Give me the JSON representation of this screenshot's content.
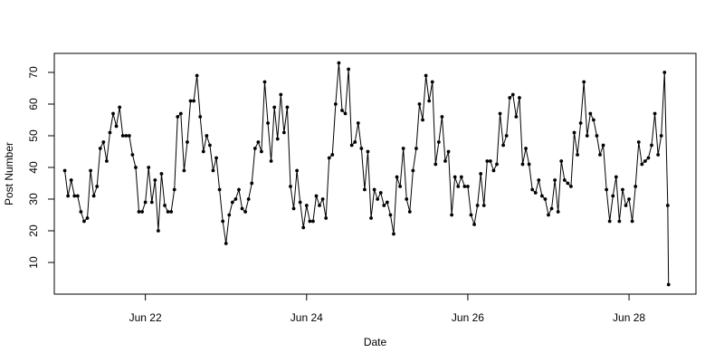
{
  "chart_data": {
    "type": "line",
    "title": "",
    "xlabel": "Date",
    "ylabel": "Post Number",
    "xlim": [
      -0.13,
      7.83
    ],
    "ylim": [
      0,
      76
    ],
    "x_ticks": [
      {
        "value": 1,
        "label": "Jun 22"
      },
      {
        "value": 3,
        "label": "Jun 24"
      },
      {
        "value": 5,
        "label": "Jun 26"
      },
      {
        "value": 7,
        "label": "Jun 28"
      }
    ],
    "y_ticks": [
      10,
      20,
      30,
      40,
      50,
      60,
      70
    ],
    "grid": false,
    "legend": "none",
    "x_unit_note": "x values are days after Jun 21 00:00",
    "series": [
      {
        "name": "",
        "color": "#000000",
        "marker": "filled-circle",
        "points": [
          [
            0.0,
            39
          ],
          [
            0.04,
            31
          ],
          [
            0.08,
            36
          ],
          [
            0.12,
            31
          ],
          [
            0.16,
            31
          ],
          [
            0.2,
            26
          ],
          [
            0.24,
            23
          ],
          [
            0.28,
            24
          ],
          [
            0.32,
            39
          ],
          [
            0.36,
            31
          ],
          [
            0.4,
            34
          ],
          [
            0.44,
            46
          ],
          [
            0.48,
            48
          ],
          [
            0.52,
            42
          ],
          [
            0.56,
            51
          ],
          [
            0.6,
            57
          ],
          [
            0.64,
            53
          ],
          [
            0.68,
            59
          ],
          [
            0.72,
            50
          ],
          [
            0.76,
            50
          ],
          [
            0.8,
            50
          ],
          [
            0.84,
            44
          ],
          [
            0.88,
            40
          ],
          [
            0.92,
            26
          ],
          [
            0.96,
            26
          ],
          [
            1.0,
            29
          ],
          [
            1.04,
            40
          ],
          [
            1.08,
            29
          ],
          [
            1.12,
            36
          ],
          [
            1.16,
            20
          ],
          [
            1.2,
            38
          ],
          [
            1.24,
            28
          ],
          [
            1.28,
            26
          ],
          [
            1.32,
            26
          ],
          [
            1.36,
            33
          ],
          [
            1.4,
            56
          ],
          [
            1.44,
            57
          ],
          [
            1.48,
            39
          ],
          [
            1.52,
            48
          ],
          [
            1.56,
            61
          ],
          [
            1.6,
            61
          ],
          [
            1.64,
            69
          ],
          [
            1.68,
            56
          ],
          [
            1.72,
            45
          ],
          [
            1.76,
            50
          ],
          [
            1.8,
            47
          ],
          [
            1.84,
            39
          ],
          [
            1.88,
            43
          ],
          [
            1.92,
            33
          ],
          [
            1.96,
            23
          ],
          [
            2.0,
            16
          ],
          [
            2.04,
            25
          ],
          [
            2.08,
            29
          ],
          [
            2.12,
            30
          ],
          [
            2.16,
            33
          ],
          [
            2.2,
            27
          ],
          [
            2.24,
            26
          ],
          [
            2.28,
            30
          ],
          [
            2.32,
            35
          ],
          [
            2.36,
            46
          ],
          [
            2.4,
            48
          ],
          [
            2.44,
            45
          ],
          [
            2.48,
            67
          ],
          [
            2.52,
            54
          ],
          [
            2.56,
            42
          ],
          [
            2.6,
            59
          ],
          [
            2.64,
            49
          ],
          [
            2.68,
            63
          ],
          [
            2.72,
            51
          ],
          [
            2.76,
            59
          ],
          [
            2.8,
            34
          ],
          [
            2.84,
            27
          ],
          [
            2.88,
            39
          ],
          [
            2.92,
            29
          ],
          [
            2.96,
            21
          ],
          [
            3.0,
            28
          ],
          [
            3.04,
            23
          ],
          [
            3.08,
            23
          ],
          [
            3.12,
            31
          ],
          [
            3.16,
            28
          ],
          [
            3.2,
            30
          ],
          [
            3.24,
            24
          ],
          [
            3.28,
            43
          ],
          [
            3.32,
            44
          ],
          [
            3.36,
            60
          ],
          [
            3.4,
            73
          ],
          [
            3.44,
            58
          ],
          [
            3.48,
            57
          ],
          [
            3.52,
            71
          ],
          [
            3.56,
            47
          ],
          [
            3.6,
            48
          ],
          [
            3.64,
            54
          ],
          [
            3.68,
            46
          ],
          [
            3.72,
            33
          ],
          [
            3.76,
            45
          ],
          [
            3.8,
            24
          ],
          [
            3.84,
            33
          ],
          [
            3.88,
            30
          ],
          [
            3.92,
            32
          ],
          [
            3.96,
            28
          ],
          [
            4.0,
            29
          ],
          [
            4.04,
            25
          ],
          [
            4.08,
            19
          ],
          [
            4.12,
            37
          ],
          [
            4.16,
            34
          ],
          [
            4.2,
            46
          ],
          [
            4.24,
            30
          ],
          [
            4.28,
            26
          ],
          [
            4.32,
            39
          ],
          [
            4.36,
            46
          ],
          [
            4.4,
            60
          ],
          [
            4.44,
            55
          ],
          [
            4.48,
            69
          ],
          [
            4.52,
            61
          ],
          [
            4.56,
            67
          ],
          [
            4.6,
            41
          ],
          [
            4.64,
            48
          ],
          [
            4.68,
            56
          ],
          [
            4.72,
            42
          ],
          [
            4.76,
            45
          ],
          [
            4.8,
            25
          ],
          [
            4.84,
            37
          ],
          [
            4.88,
            34
          ],
          [
            4.92,
            37
          ],
          [
            4.96,
            34
          ],
          [
            5.0,
            34
          ],
          [
            5.04,
            25
          ],
          [
            5.08,
            22
          ],
          [
            5.12,
            28
          ],
          [
            5.16,
            38
          ],
          [
            5.2,
            28
          ],
          [
            5.24,
            42
          ],
          [
            5.28,
            42
          ],
          [
            5.32,
            39
          ],
          [
            5.36,
            41
          ],
          [
            5.4,
            57
          ],
          [
            5.44,
            47
          ],
          [
            5.48,
            50
          ],
          [
            5.52,
            62
          ],
          [
            5.56,
            63
          ],
          [
            5.6,
            56
          ],
          [
            5.64,
            62
          ],
          [
            5.68,
            41
          ],
          [
            5.72,
            46
          ],
          [
            5.76,
            41
          ],
          [
            5.8,
            33
          ],
          [
            5.84,
            32
          ],
          [
            5.88,
            36
          ],
          [
            5.92,
            31
          ],
          [
            5.96,
            30
          ],
          [
            6.0,
            25
          ],
          [
            6.04,
            27
          ],
          [
            6.08,
            36
          ],
          [
            6.12,
            26
          ],
          [
            6.16,
            42
          ],
          [
            6.2,
            36
          ],
          [
            6.24,
            35
          ],
          [
            6.28,
            34
          ],
          [
            6.32,
            51
          ],
          [
            6.36,
            44
          ],
          [
            6.4,
            54
          ],
          [
            6.44,
            67
          ],
          [
            6.48,
            50
          ],
          [
            6.52,
            57
          ],
          [
            6.56,
            55
          ],
          [
            6.6,
            50
          ],
          [
            6.64,
            44
          ],
          [
            6.68,
            47
          ],
          [
            6.72,
            33
          ],
          [
            6.76,
            23
          ],
          [
            6.8,
            31
          ],
          [
            6.84,
            37
          ],
          [
            6.88,
            23
          ],
          [
            6.92,
            33
          ],
          [
            6.96,
            28
          ],
          [
            7.0,
            30
          ],
          [
            7.04,
            23
          ],
          [
            7.08,
            34
          ],
          [
            7.12,
            48
          ],
          [
            7.16,
            41
          ],
          [
            7.2,
            42
          ],
          [
            7.24,
            43
          ],
          [
            7.28,
            47
          ],
          [
            7.32,
            57
          ],
          [
            7.36,
            44
          ],
          [
            7.4,
            50
          ],
          [
            7.44,
            70
          ],
          [
            7.48,
            28
          ],
          [
            7.49,
            3
          ]
        ]
      }
    ]
  }
}
